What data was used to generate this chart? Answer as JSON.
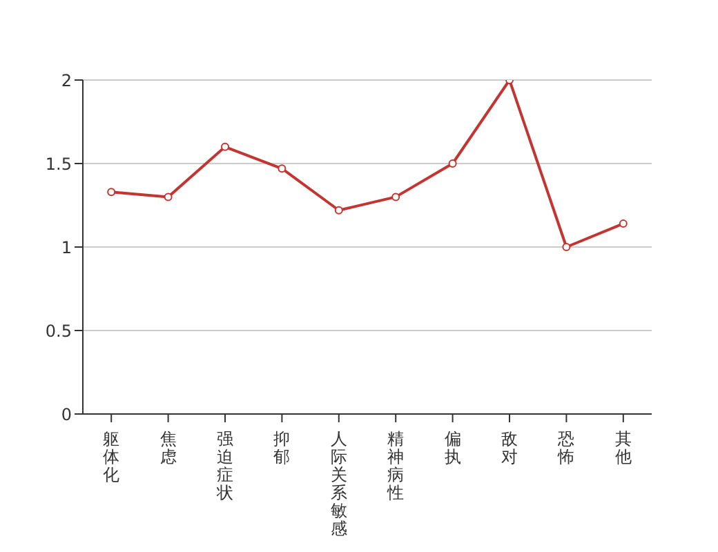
{
  "chart_data": {
    "type": "line",
    "categories": [
      "躯体化",
      "焦虑",
      "强迫症状",
      "抑郁",
      "人际关系敏感",
      "精神病性",
      "偏执",
      "敌对",
      "恐怖",
      "其他"
    ],
    "series": [
      {
        "color": "#c23531",
        "values": [
          1.33,
          1.3,
          1.6,
          1.47,
          1.22,
          1.3,
          1.5,
          2.0,
          1.0,
          1.14
        ]
      }
    ],
    "ylim": [
      0,
      2
    ],
    "yticks": [
      0,
      0.5,
      1,
      1.5,
      2
    ],
    "grid": "y",
    "marker": "circle",
    "line_style": "solid"
  }
}
